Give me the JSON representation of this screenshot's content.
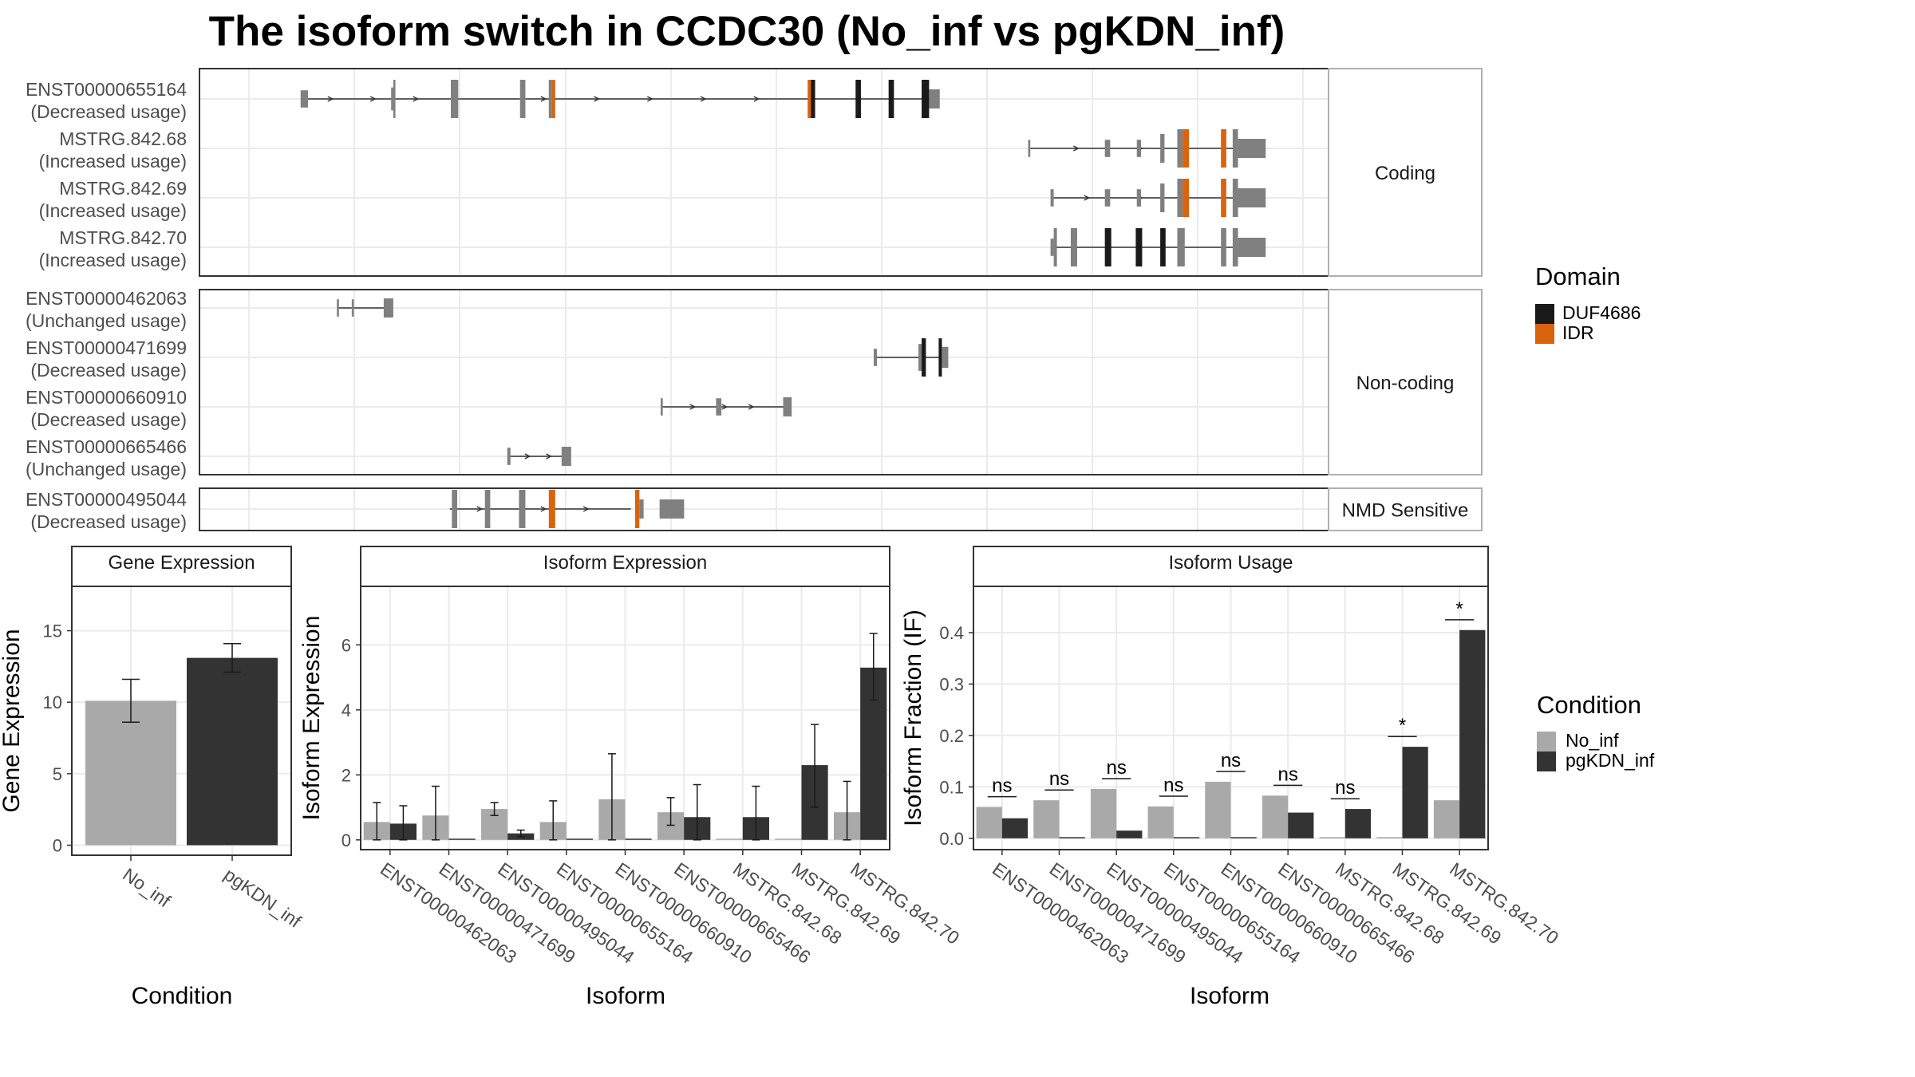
{
  "title": "The isoform switch in CCDC30 (No_inf vs pgKDN_inf)",
  "colors": {
    "no_inf": "#a9a9a9",
    "pgkdn_inf": "#333333",
    "exon": "#808080",
    "duf4686": "#1a1a1a",
    "idr": "#d9630f",
    "grid": "#ebebeb",
    "panel_border": "#333333"
  },
  "legends": {
    "domain": {
      "title": "Domain",
      "items": [
        {
          "label": "DUF4686",
          "color": "#1a1a1a"
        },
        {
          "label": "IDR",
          "color": "#d9630f"
        }
      ]
    },
    "condition": {
      "title": "Condition",
      "items": [
        {
          "label": "No_inf",
          "color": "#a9a9a9"
        },
        {
          "label": "pgKDN_inf",
          "color": "#333333"
        }
      ]
    }
  },
  "chart_data": [
    {
      "type": "gene-structure",
      "panels": [
        {
          "facet_label": "Coding",
          "isoforms": [
            {
              "name": "ENST00000655164",
              "usage": "(Decreased usage)"
            },
            {
              "name": "MSTRG.842.68",
              "usage": "(Increased usage)"
            },
            {
              "name": "MSTRG.842.69",
              "usage": "(Increased usage)"
            },
            {
              "name": "MSTRG.842.70",
              "usage": "(Increased usage)"
            }
          ]
        },
        {
          "facet_label": "Non-coding",
          "isoforms": [
            {
              "name": "ENST00000462063",
              "usage": "(Unchanged usage)"
            },
            {
              "name": "ENST00000471699",
              "usage": "(Decreased usage)"
            },
            {
              "name": "ENST00000660910",
              "usage": "(Decreased usage)"
            },
            {
              "name": "ENST00000665466",
              "usage": "(Unchanged usage)"
            }
          ]
        },
        {
          "facet_label": "NMD Sensitive",
          "isoforms": [
            {
              "name": "ENST00000495044",
              "usage": "(Decreased usage)"
            }
          ]
        }
      ],
      "exon_structures": [
        {
          "span": [
            0.05,
            0.645
          ],
          "arrows": [
            0.08,
            0.12,
            0.16,
            0.28,
            0.33,
            0.38,
            0.43,
            0.48
          ],
          "exons": [
            {
              "s": 0.05,
              "e": 0.057,
              "k": "e",
              "r": 0.45
            },
            {
              "s": 0.135,
              "e": 0.137,
              "k": "e",
              "r": 0.6
            },
            {
              "s": 0.137,
              "e": 0.139,
              "k": "e",
              "r": 1
            },
            {
              "s": 0.191,
              "e": 0.198,
              "k": "e",
              "r": 1
            },
            {
              "s": 0.256,
              "e": 0.261,
              "k": "e",
              "r": 1
            },
            {
              "s": 0.283,
              "e": 0.286,
              "k": "e",
              "r": 1
            },
            {
              "s": 0.286,
              "e": 0.289,
              "k": "i",
              "r": 1
            },
            {
              "s": 0.526,
              "e": 0.529,
              "k": "i",
              "r": 1
            },
            {
              "s": 0.529,
              "e": 0.533,
              "k": "d",
              "r": 1
            },
            {
              "s": 0.571,
              "e": 0.576,
              "k": "d",
              "r": 1
            },
            {
              "s": 0.602,
              "e": 0.607,
              "k": "d",
              "r": 1
            },
            {
              "s": 0.633,
              "e": 0.64,
              "k": "d",
              "r": 1
            },
            {
              "s": 0.64,
              "e": 0.65,
              "k": "e",
              "r": 0.5
            }
          ]
        },
        {
          "span": [
            0.735,
            0.945
          ],
          "arrows": [
            0.78,
            0.84
          ],
          "exons": [
            {
              "s": 0.733,
              "e": 0.735,
              "k": "e",
              "r": 0.45
            },
            {
              "s": 0.805,
              "e": 0.81,
              "k": "e",
              "r": 0.45
            },
            {
              "s": 0.835,
              "e": 0.839,
              "k": "e",
              "r": 0.45
            },
            {
              "s": 0.857,
              "e": 0.861,
              "k": "e",
              "r": 0.75
            },
            {
              "s": 0.873,
              "e": 0.878,
              "k": "e",
              "r": 1
            },
            {
              "s": 0.878,
              "e": 0.884,
              "k": "i",
              "r": 1
            },
            {
              "s": 0.914,
              "e": 0.919,
              "k": "i",
              "r": 1
            },
            {
              "s": 0.925,
              "e": 0.93,
              "k": "e",
              "r": 1
            },
            {
              "s": 0.93,
              "e": 0.956,
              "k": "e",
              "r": 0.5
            }
          ]
        },
        {
          "span": [
            0.755,
            0.945
          ],
          "arrows": [
            0.79,
            0.84
          ],
          "exons": [
            {
              "s": 0.754,
              "e": 0.757,
              "k": "e",
              "r": 0.45
            },
            {
              "s": 0.805,
              "e": 0.81,
              "k": "e",
              "r": 0.45
            },
            {
              "s": 0.835,
              "e": 0.839,
              "k": "e",
              "r": 0.45
            },
            {
              "s": 0.857,
              "e": 0.861,
              "k": "e",
              "r": 0.75
            },
            {
              "s": 0.873,
              "e": 0.878,
              "k": "e",
              "r": 1
            },
            {
              "s": 0.878,
              "e": 0.884,
              "k": "i",
              "r": 1
            },
            {
              "s": 0.914,
              "e": 0.919,
              "k": "i",
              "r": 1
            },
            {
              "s": 0.925,
              "e": 0.93,
              "k": "e",
              "r": 1
            },
            {
              "s": 0.93,
              "e": 0.956,
              "k": "e",
              "r": 0.5
            }
          ]
        },
        {
          "span": [
            0.755,
            0.945
          ],
          "arrows": [],
          "exons": [
            {
              "s": 0.754,
              "e": 0.757,
              "k": "e",
              "r": 0.45
            },
            {
              "s": 0.757,
              "e": 0.76,
              "k": "e",
              "r": 1
            },
            {
              "s": 0.773,
              "e": 0.779,
              "k": "e",
              "r": 1
            },
            {
              "s": 0.805,
              "e": 0.811,
              "k": "d",
              "r": 1
            },
            {
              "s": 0.834,
              "e": 0.84,
              "k": "d",
              "r": 1
            },
            {
              "s": 0.857,
              "e": 0.862,
              "k": "d",
              "r": 1
            },
            {
              "s": 0.873,
              "e": 0.88,
              "k": "e",
              "r": 1
            },
            {
              "s": 0.914,
              "e": 0.919,
              "k": "e",
              "r": 1
            },
            {
              "s": 0.925,
              "e": 0.93,
              "k": "e",
              "r": 1
            },
            {
              "s": 0.93,
              "e": 0.956,
              "k": "e",
              "r": 0.5
            }
          ]
        },
        {
          "span": [
            0.085,
            0.135
          ],
          "arrows": [],
          "exons": [
            {
              "s": 0.084,
              "e": 0.086,
              "k": "e",
              "r": 0.45
            },
            {
              "s": 0.098,
              "e": 0.1,
              "k": "e",
              "r": 0.45
            },
            {
              "s": 0.128,
              "e": 0.137,
              "k": "e",
              "r": 0.5
            }
          ]
        },
        {
          "span": [
            0.59,
            0.655
          ],
          "arrows": [],
          "exons": [
            {
              "s": 0.588,
              "e": 0.591,
              "k": "e",
              "r": 0.45
            },
            {
              "s": 0.63,
              "e": 0.633,
              "k": "e",
              "r": 0.7
            },
            {
              "s": 0.633,
              "e": 0.637,
              "k": "d",
              "r": 1
            },
            {
              "s": 0.649,
              "e": 0.652,
              "k": "d",
              "r": 1
            },
            {
              "s": 0.652,
              "e": 0.658,
              "k": "e",
              "r": 0.55
            }
          ]
        },
        {
          "span": [
            0.39,
            0.51
          ],
          "arrows": [
            0.42,
            0.45,
            0.475
          ],
          "exons": [
            {
              "s": 0.388,
              "e": 0.39,
              "k": "e",
              "r": 0.45
            },
            {
              "s": 0.44,
              "e": 0.445,
              "k": "e",
              "r": 0.45
            },
            {
              "s": 0.503,
              "e": 0.511,
              "k": "e",
              "r": 0.5
            }
          ]
        },
        {
          "span": [
            0.245,
            0.3
          ],
          "arrows": [
            0.265,
            0.285
          ],
          "exons": [
            {
              "s": 0.244,
              "e": 0.247,
              "k": "e",
              "r": 0.45
            },
            {
              "s": 0.295,
              "e": 0.304,
              "k": "e",
              "r": 0.5
            }
          ]
        },
        {
          "span": [
            0.19,
            0.36
          ],
          "arrows": [
            0.22,
            0.28,
            0.32
          ],
          "exons": [
            {
              "s": 0.192,
              "e": 0.197,
              "k": "e",
              "r": 1
            },
            {
              "s": 0.223,
              "e": 0.228,
              "k": "e",
              "r": 1
            },
            {
              "s": 0.255,
              "e": 0.261,
              "k": "e",
              "r": 1
            },
            {
              "s": 0.283,
              "e": 0.289,
              "k": "i",
              "r": 1
            },
            {
              "s": 0.364,
              "e": 0.368,
              "k": "i",
              "r": 1
            },
            {
              "s": 0.368,
              "e": 0.372,
              "k": "e",
              "r": 0.5
            },
            {
              "s": 0.387,
              "e": 0.41,
              "k": "e",
              "r": 0.5
            }
          ]
        }
      ]
    },
    {
      "type": "bar",
      "title": "Gene Expression",
      "xlabel": "Condition",
      "ylabel": "Gene Expression",
      "categories": [
        "No_inf",
        "pgKDN_inf"
      ],
      "values": [
        10.1,
        13.1
      ],
      "errors": [
        [
          8.6,
          11.6
        ],
        [
          12.1,
          14.1
        ]
      ],
      "colors": [
        "#a9a9a9",
        "#333333"
      ],
      "ylim": [
        -0.7,
        18.1
      ],
      "yticks": [
        0,
        5,
        10,
        15
      ]
    },
    {
      "type": "bar",
      "title": "Isoform Expression",
      "xlabel": "Isoform",
      "ylabel": "Isoform Expression",
      "categories": [
        "ENST00000462063",
        "ENST00000471699",
        "ENST00000495044",
        "ENST00000655164",
        "ENST00000660910",
        "ENST00000665466",
        "MSTRG.842.68",
        "MSTRG.842.69",
        "MSTRG.842.70"
      ],
      "series": [
        {
          "name": "No_inf",
          "values": [
            0.55,
            0.75,
            0.95,
            0.55,
            1.25,
            0.85,
            0,
            0,
            0.85
          ],
          "errors": [
            [
              0,
              1.15
            ],
            [
              0,
              1.65
            ],
            [
              0.75,
              1.15
            ],
            [
              0,
              1.2
            ],
            [
              0,
              2.65
            ],
            [
              0.45,
              1.3
            ],
            null,
            null,
            [
              0,
              1.8
            ]
          ]
        },
        {
          "name": "pgKDN_inf",
          "values": [
            0.5,
            0,
            0.2,
            0,
            0,
            0.7,
            0.7,
            2.3,
            5.3
          ],
          "errors": [
            [
              0,
              1.05
            ],
            null,
            [
              0.1,
              0.3
            ],
            null,
            null,
            [
              0,
              1.7
            ],
            [
              0,
              1.65
            ],
            [
              1.0,
              3.55
            ],
            [
              4.3,
              6.35
            ]
          ]
        }
      ],
      "ylim": [
        -0.3,
        7.8
      ],
      "yticks": [
        0,
        2,
        4,
        6
      ]
    },
    {
      "type": "bar",
      "title": "Isoform Usage",
      "xlabel": "Isoform",
      "ylabel": "Isoform Fraction (IF)",
      "categories": [
        "ENST00000462063",
        "ENST00000471699",
        "ENST00000495044",
        "ENST00000655164",
        "ENST00000660910",
        "ENST00000665466",
        "MSTRG.842.68",
        "MSTRG.842.69",
        "MSTRG.842.70"
      ],
      "series": [
        {
          "name": "No_inf",
          "values": [
            0.061,
            0.074,
            0.096,
            0.062,
            0.11,
            0.083,
            0,
            0,
            0.074
          ]
        },
        {
          "name": "pgKDN_inf",
          "values": [
            0.039,
            0,
            0.015,
            0,
            0,
            0.05,
            0.057,
            0.178,
            0.405
          ]
        }
      ],
      "significance": [
        "ns",
        "ns",
        "ns",
        "ns",
        "ns",
        "ns",
        "ns",
        "*",
        "*"
      ],
      "ylim": [
        -0.022,
        0.49
      ],
      "yticks": [
        "0.0",
        "0.1",
        "0.2",
        "0.3",
        "0.4"
      ]
    }
  ]
}
